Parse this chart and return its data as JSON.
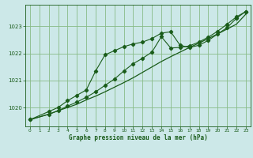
{
  "title": "Graphe pression niveau de la mer (hPa)",
  "bg_color": "#cce8e8",
  "grid_color": "#88bb88",
  "line_color": "#1a5c1a",
  "xlim": [
    -0.5,
    23.5
  ],
  "ylim": [
    1019.3,
    1023.8
  ],
  "yticks": [
    1020,
    1021,
    1022,
    1023
  ],
  "xticks": [
    0,
    1,
    2,
    3,
    4,
    5,
    6,
    7,
    8,
    9,
    10,
    11,
    12,
    13,
    14,
    15,
    16,
    17,
    18,
    19,
    20,
    21,
    22,
    23
  ],
  "series1_x": [
    0,
    1,
    2,
    3,
    4,
    5,
    6,
    7,
    8,
    9,
    10,
    11,
    12,
    13,
    14,
    15,
    16,
    17,
    18,
    19,
    20,
    21,
    22,
    23
  ],
  "series1_y": [
    1019.55,
    1019.65,
    1019.75,
    1019.88,
    1020.0,
    1020.12,
    1020.28,
    1020.42,
    1020.58,
    1020.75,
    1020.92,
    1021.1,
    1021.3,
    1021.5,
    1021.7,
    1021.88,
    1022.05,
    1022.22,
    1022.38,
    1022.55,
    1022.72,
    1022.9,
    1023.08,
    1023.45
  ],
  "series2_x": [
    0,
    2,
    3,
    4,
    5,
    6,
    7,
    8,
    9,
    10,
    11,
    12,
    13,
    14,
    15,
    16,
    17,
    18,
    19,
    20,
    21,
    22,
    23
  ],
  "series2_y": [
    1019.55,
    1019.85,
    1020.0,
    1020.25,
    1020.45,
    1020.65,
    1021.35,
    1021.95,
    1022.1,
    1022.25,
    1022.35,
    1022.42,
    1022.55,
    1022.75,
    1022.8,
    1022.3,
    1022.22,
    1022.3,
    1022.48,
    1022.72,
    1022.95,
    1023.3,
    1023.55
  ],
  "series3_x": [
    0,
    2,
    3,
    4,
    5,
    6,
    7,
    8,
    9,
    10,
    11,
    12,
    13,
    14,
    15,
    16,
    17,
    18,
    19,
    20,
    21,
    22,
    23
  ],
  "series3_y": [
    1019.55,
    1019.75,
    1019.88,
    1020.05,
    1020.2,
    1020.38,
    1020.58,
    1020.82,
    1021.05,
    1021.35,
    1021.62,
    1021.82,
    1022.05,
    1022.62,
    1022.2,
    1022.22,
    1022.28,
    1022.42,
    1022.6,
    1022.82,
    1023.08,
    1023.35,
    1023.55
  ]
}
